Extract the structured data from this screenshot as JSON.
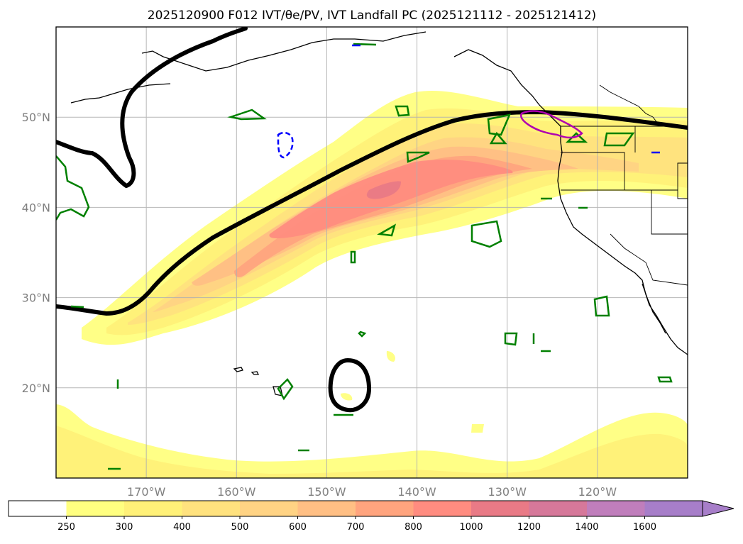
{
  "title": "2025120900 F012 IVT/θe/PV, IVT Landfall PC (2025121112 - 2025121412)",
  "colors": {
    "ivt_250": "#ffff80",
    "ivt_300": "#fff178",
    "ivt_400": "#ffe27e",
    "ivt_500": "#ffd384",
    "ivt_600": "#ffbf84",
    "ivt_700": "#ffa47e",
    "ivt_800": "#ff8c80",
    "ivt_1000": "#e97a86",
    "ivt_1200": "#d6789a",
    "ivt_1400": "#c07ebc",
    "ivt_1600": "#a77ec9",
    "coast": "#000000",
    "pv_contour": "#008000",
    "theta_contour": "#000000",
    "dashed_contour": "#0000ff",
    "landfall_pc": "#b000b0"
  },
  "map": {
    "projection": "PlateCarree",
    "lon_range": [
      -180,
      -110
    ],
    "lat_range": [
      10,
      60
    ],
    "lon_ticks": [
      {
        "value": -170,
        "label": "170°W"
      },
      {
        "value": -160,
        "label": "160°W"
      },
      {
        "value": -150,
        "label": "150°W"
      },
      {
        "value": -140,
        "label": "140°W"
      },
      {
        "value": -130,
        "label": "130°W"
      },
      {
        "value": -120,
        "label": "120°W"
      }
    ],
    "lat_ticks": [
      {
        "value": 20,
        "label": "20°N"
      },
      {
        "value": 30,
        "label": "30°N"
      },
      {
        "value": 40,
        "label": "40°N"
      },
      {
        "value": 50,
        "label": "50°N"
      }
    ],
    "gridlines": true
  },
  "colorbar": {
    "orientation": "horizontal",
    "extend": "max",
    "levels": [
      "250",
      "300",
      "400",
      "500",
      "600",
      "700",
      "800",
      "1000",
      "1200",
      "1400",
      "1600"
    ]
  }
}
